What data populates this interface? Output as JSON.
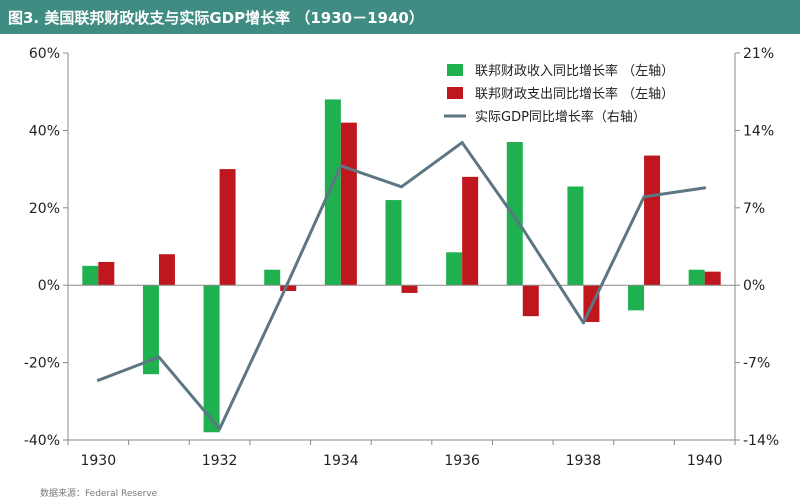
{
  "header": {
    "title": "图3. 美国联邦财政收支与实际GDP增长率 （1930－1940）"
  },
  "footer": {
    "source": "数据来源：Federal Reserve"
  },
  "colors": {
    "title_bg": "#3f8c82",
    "revenue": "#1fb050",
    "expenditure": "#c0171e",
    "gdp": "#5d7683"
  },
  "chart_data": {
    "type": "bar",
    "x": [
      1930,
      1931,
      1932,
      1933,
      1934,
      1935,
      1936,
      1937,
      1938,
      1939,
      1940
    ],
    "x_tick_labels": [
      "1930",
      "1932",
      "1934",
      "1936",
      "1938",
      "1940"
    ],
    "left_ticks": [
      "60%",
      "40%",
      "20%",
      "0%",
      "-20%",
      "-40%"
    ],
    "right_ticks": [
      "21%",
      "14%",
      "7%",
      "0%",
      "-7%",
      "-14%"
    ],
    "ylim_left": [
      -40,
      60
    ],
    "ylim_right": [
      -14,
      21
    ],
    "series": [
      {
        "name": "联邦财政收入同比增长率 （左轴）",
        "kind": "bar",
        "axis": "left",
        "values": [
          5,
          -23,
          -38,
          4,
          48,
          22,
          8.5,
          37,
          25.5,
          -6.5,
          4
        ]
      },
      {
        "name": "联邦财政支出同比增长率 （左轴）",
        "kind": "bar",
        "axis": "left",
        "values": [
          6,
          8,
          30,
          -1.5,
          42,
          -2,
          28,
          -8,
          -9.5,
          33.5,
          3.5
        ]
      },
      {
        "name": "实际GDP同比增长率（右轴）",
        "kind": "line",
        "axis": "right",
        "values": [
          -8.6,
          -6.5,
          -13,
          -1.3,
          10.8,
          8.9,
          12.9,
          5.1,
          -3.4,
          8,
          8.8
        ]
      }
    ],
    "legend_position": "top-right",
    "grid": false
  }
}
